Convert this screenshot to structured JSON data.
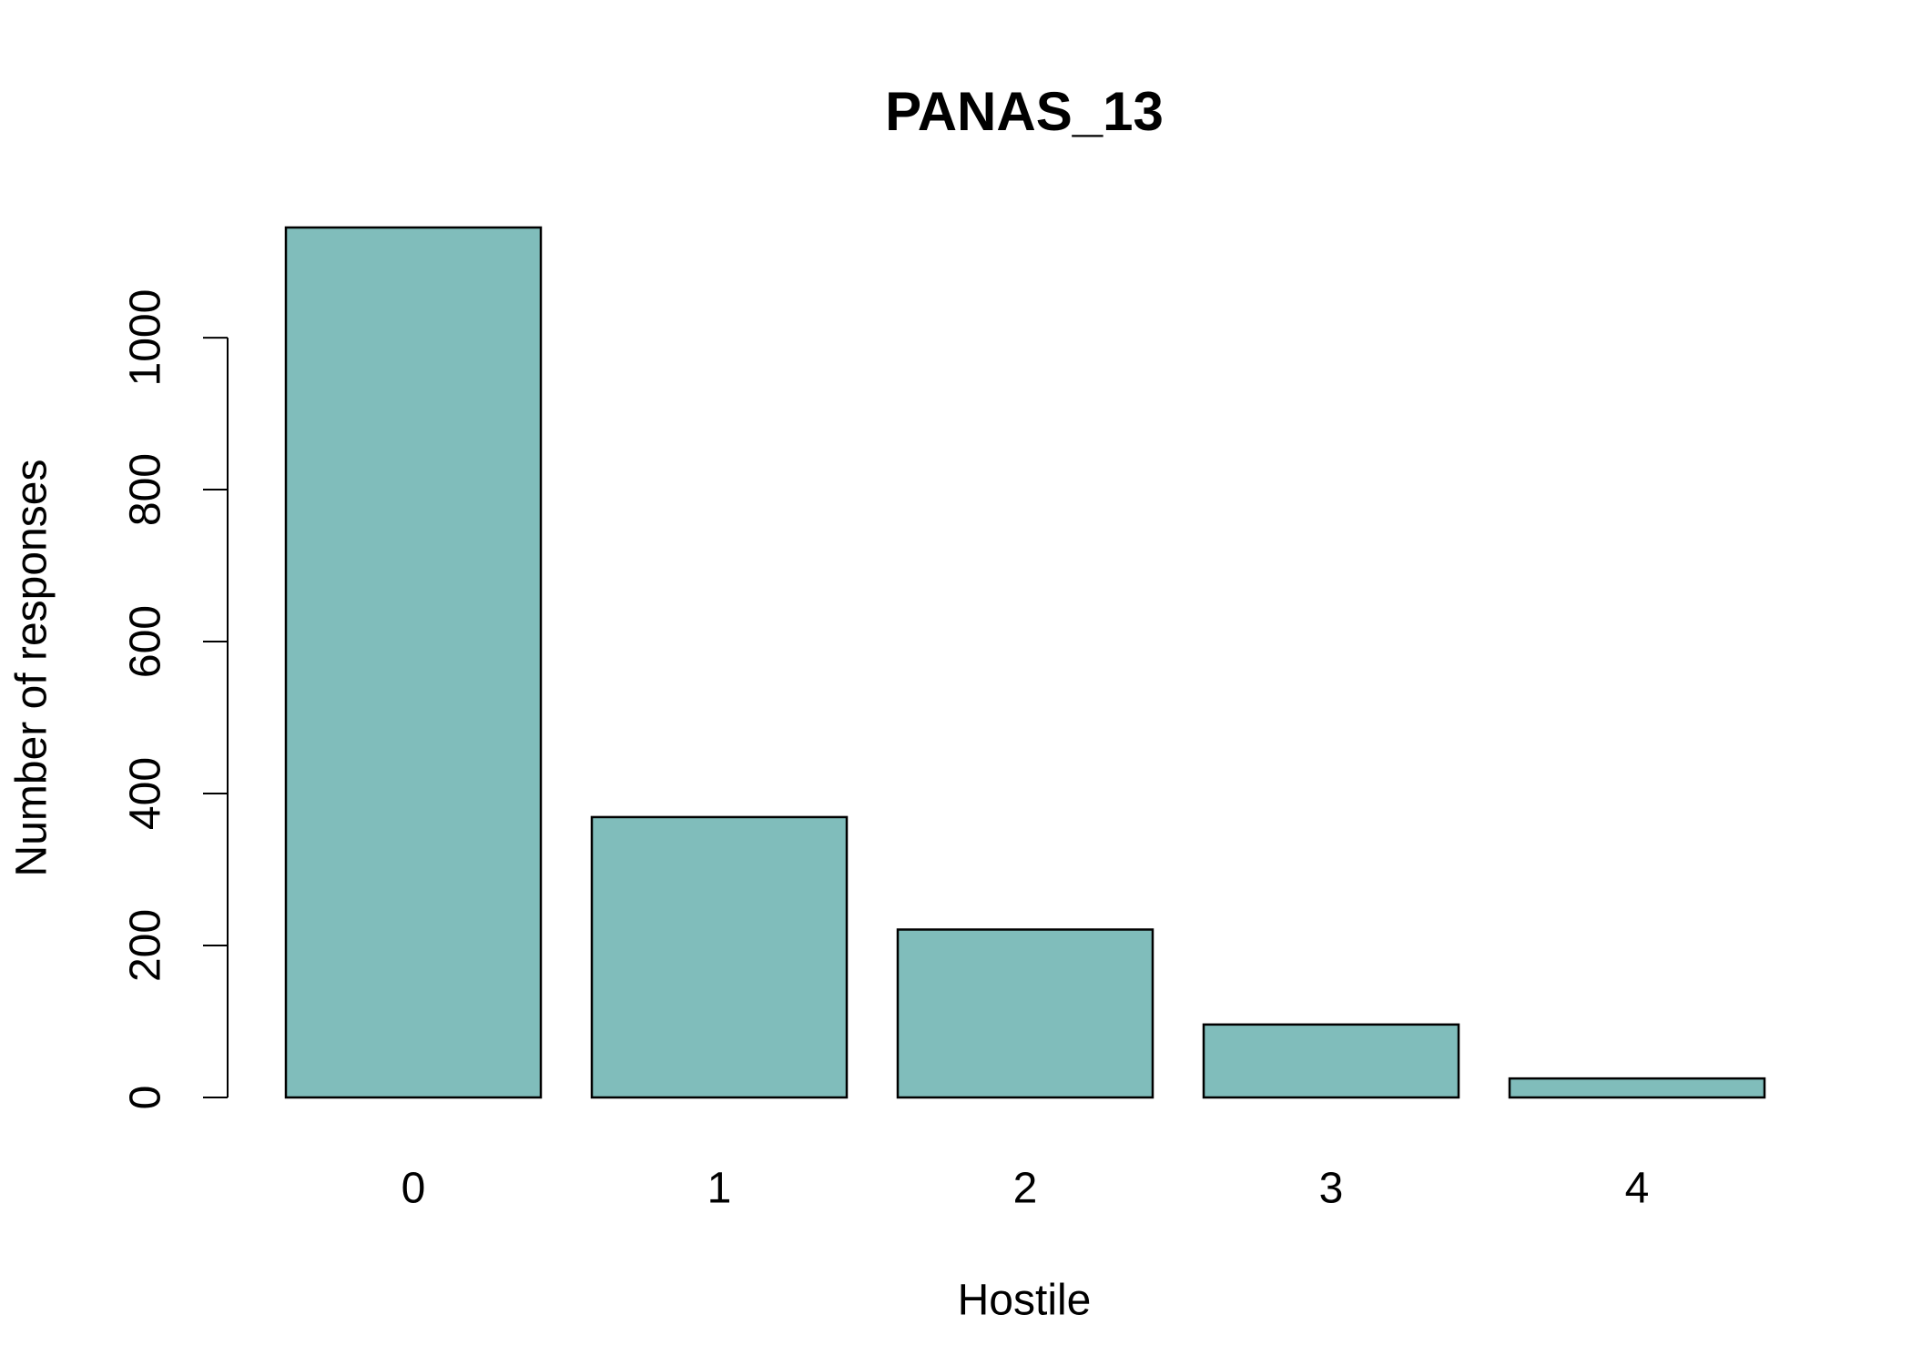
{
  "chart_data": {
    "type": "bar",
    "title": "PANAS_13",
    "x_label": "Hostile",
    "y_label": "Number of responses",
    "categories": [
      "0",
      "1",
      "2",
      "3",
      "4"
    ],
    "values": [
      1145,
      369,
      221,
      96,
      25
    ],
    "color": "#80bdbb",
    "ylim": [
      0,
      1145
    ],
    "yticks": [
      0,
      200,
      400,
      600,
      800,
      1000
    ],
    "grid": false
  }
}
